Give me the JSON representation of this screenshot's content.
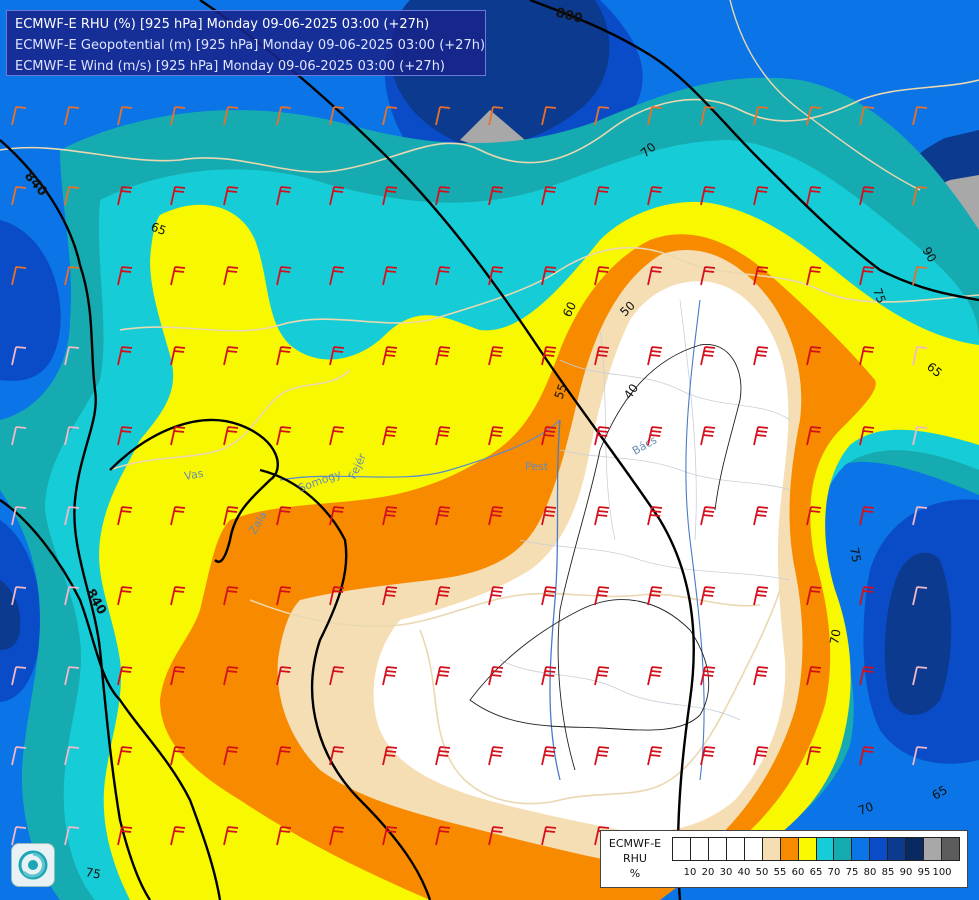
{
  "header": {
    "line1": "ECMWF-E RHU (%) [925 hPa] Monday 09-06-2025 03:00 (+27h)",
    "line2": "ECMWF-E Geopotential (m) [925 hPa] Monday 09-06-2025 03:00 (+27h)",
    "line3": "ECMWF-E Wind (m/s) [925 hPa] Monday 09-06-2025 03:00 (+27h)"
  },
  "legend": {
    "model": "ECMWF-E",
    "field": "RHU",
    "unit": "%",
    "ticks": [
      "10",
      "20",
      "30",
      "40",
      "50",
      "55",
      "60",
      "65",
      "70",
      "75",
      "80",
      "85",
      "90",
      "95",
      "100"
    ],
    "colors": [
      "#ffffff",
      "#ffffff",
      "#ffffff",
      "#ffffff",
      "#ffffff",
      "#f5deb3",
      "#f88a00",
      "#f8f800",
      "#16cdd7",
      "#16abb0",
      "#0b74e6",
      "#0a4cc8",
      "#0b3a8f",
      "#082a60",
      "#a8a8a8",
      "#5c5c5c"
    ]
  },
  "contour_labels": {
    "rhu": [
      "65",
      "60",
      "55",
      "50",
      "40",
      "70",
      "75",
      "65",
      "70",
      "75",
      "75",
      "70",
      "65",
      "90"
    ],
    "geopotential": [
      "800",
      "840",
      "840"
    ]
  },
  "place_labels": [
    "Pest",
    "Bács",
    "Vas",
    "Somogy",
    "Fejér",
    "Zala"
  ],
  "map_icons": [
    "wind-barb-icon",
    "ecmwf-logo-icon"
  ]
}
